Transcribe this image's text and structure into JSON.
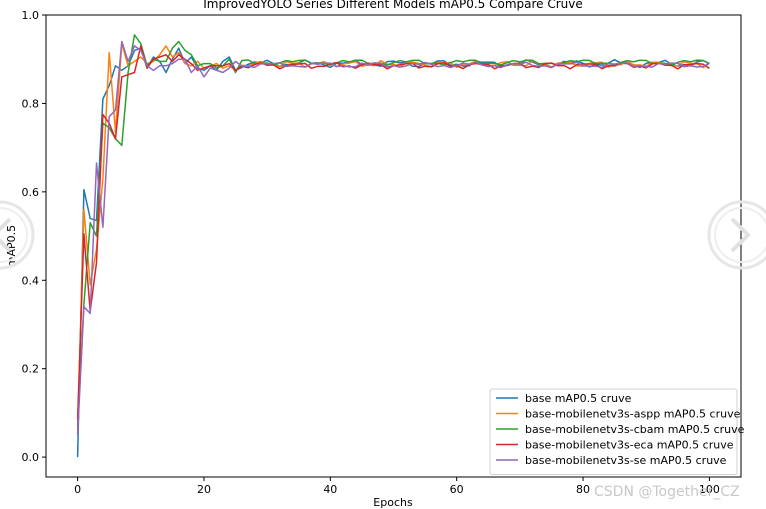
{
  "chart_data": {
    "type": "line",
    "title": "ImprovedYOLO Series Different Models mAP0.5 Compare Cruve",
    "xlabel": "Epochs",
    "ylabel": "mAP0.5",
    "xlim": [
      -5,
      105
    ],
    "ylim": [
      -0.045,
      1.0
    ],
    "xticks": [
      0,
      20,
      40,
      60,
      80,
      100
    ],
    "yticks": [
      0.0,
      0.2,
      0.4,
      0.6,
      0.8,
      1.0
    ],
    "xtick_labels": [
      "0",
      "20",
      "40",
      "60",
      "80",
      "100"
    ],
    "ytick_labels": [
      "0.0",
      "0.2",
      "0.4",
      "0.6",
      "0.8",
      "1.0"
    ],
    "grid": false,
    "legend_position": "lower-right",
    "series": [
      {
        "name": "base mAP0.5 cruve",
        "color": "#1f77b4",
        "early": [
          0.0,
          0.605,
          0.54,
          0.535,
          0.81,
          0.84,
          0.885,
          0.875,
          0.885,
          0.92,
          0.925,
          0.88,
          0.905,
          0.895,
          0.87,
          0.9,
          0.925,
          0.89,
          0.905,
          0.88,
          0.875,
          0.885,
          0.875,
          0.895,
          0.905,
          0.875
        ],
        "base": 0.89,
        "amp": 0.009,
        "f1": 0.9,
        "f2": 2.3,
        "p1": 0.3,
        "p2": 1.1
      },
      {
        "name": "base-mobilenetv3s-aspp mAP0.5 cruve",
        "color": "#ff7f0e",
        "early": [
          0.06,
          0.56,
          0.39,
          0.47,
          0.63,
          0.915,
          0.735,
          0.935,
          0.885,
          0.895,
          0.905,
          0.89,
          0.895,
          0.91,
          0.93,
          0.905,
          0.915,
          0.89,
          0.885,
          0.895,
          0.88,
          0.885,
          0.89,
          0.88,
          0.885,
          0.875
        ],
        "base": 0.889,
        "amp": 0.008,
        "f1": 1.3,
        "f2": 2.9,
        "p1": 1.7,
        "p2": 0.4
      },
      {
        "name": "base-mobilenetv3s-cbam mAP0.5 cruve",
        "color": "#2ca02c",
        "early": [
          0.07,
          0.345,
          0.53,
          0.5,
          0.755,
          0.745,
          0.72,
          0.705,
          0.87,
          0.955,
          0.935,
          0.885,
          0.9,
          0.895,
          0.895,
          0.925,
          0.94,
          0.92,
          0.91,
          0.885,
          0.89,
          0.89,
          0.88,
          0.885,
          0.9,
          0.87
        ],
        "base": 0.893,
        "amp": 0.007,
        "f1": 0.7,
        "f2": 2.1,
        "p1": 2.4,
        "p2": 1.9
      },
      {
        "name": "base-mobilenetv3s-eca mAP0.5 cruve",
        "color": "#d62728",
        "early": [
          0.085,
          0.505,
          0.33,
          0.44,
          0.775,
          0.755,
          0.72,
          0.86,
          0.865,
          0.87,
          0.93,
          0.88,
          0.9,
          0.905,
          0.91,
          0.895,
          0.91,
          0.9,
          0.89,
          0.875,
          0.88,
          0.885,
          0.885,
          0.885,
          0.89,
          0.875
        ],
        "base": 0.886,
        "amp": 0.008,
        "f1": 1.1,
        "f2": 2.6,
        "p1": 0.9,
        "p2": 2.7
      },
      {
        "name": "base-mobilenetv3s-se mAP0.5 cruve",
        "color": "#9467bd",
        "early": [
          0.05,
          0.34,
          0.325,
          0.665,
          0.52,
          0.77,
          0.785,
          0.94,
          0.895,
          0.93,
          0.92,
          0.885,
          0.875,
          0.885,
          0.885,
          0.89,
          0.9,
          0.9,
          0.87,
          0.885,
          0.86,
          0.88,
          0.875,
          0.87,
          0.88,
          0.895
        ],
        "base": 0.887,
        "amp": 0.007,
        "f1": 0.8,
        "f2": 2.4,
        "p1": 2.0,
        "p2": 0.6
      }
    ]
  },
  "watermark": "CSDN @Together_CZ",
  "nav": {
    "prev_icon": "chevron-left-icon",
    "next_icon": "chevron-right-icon"
  }
}
